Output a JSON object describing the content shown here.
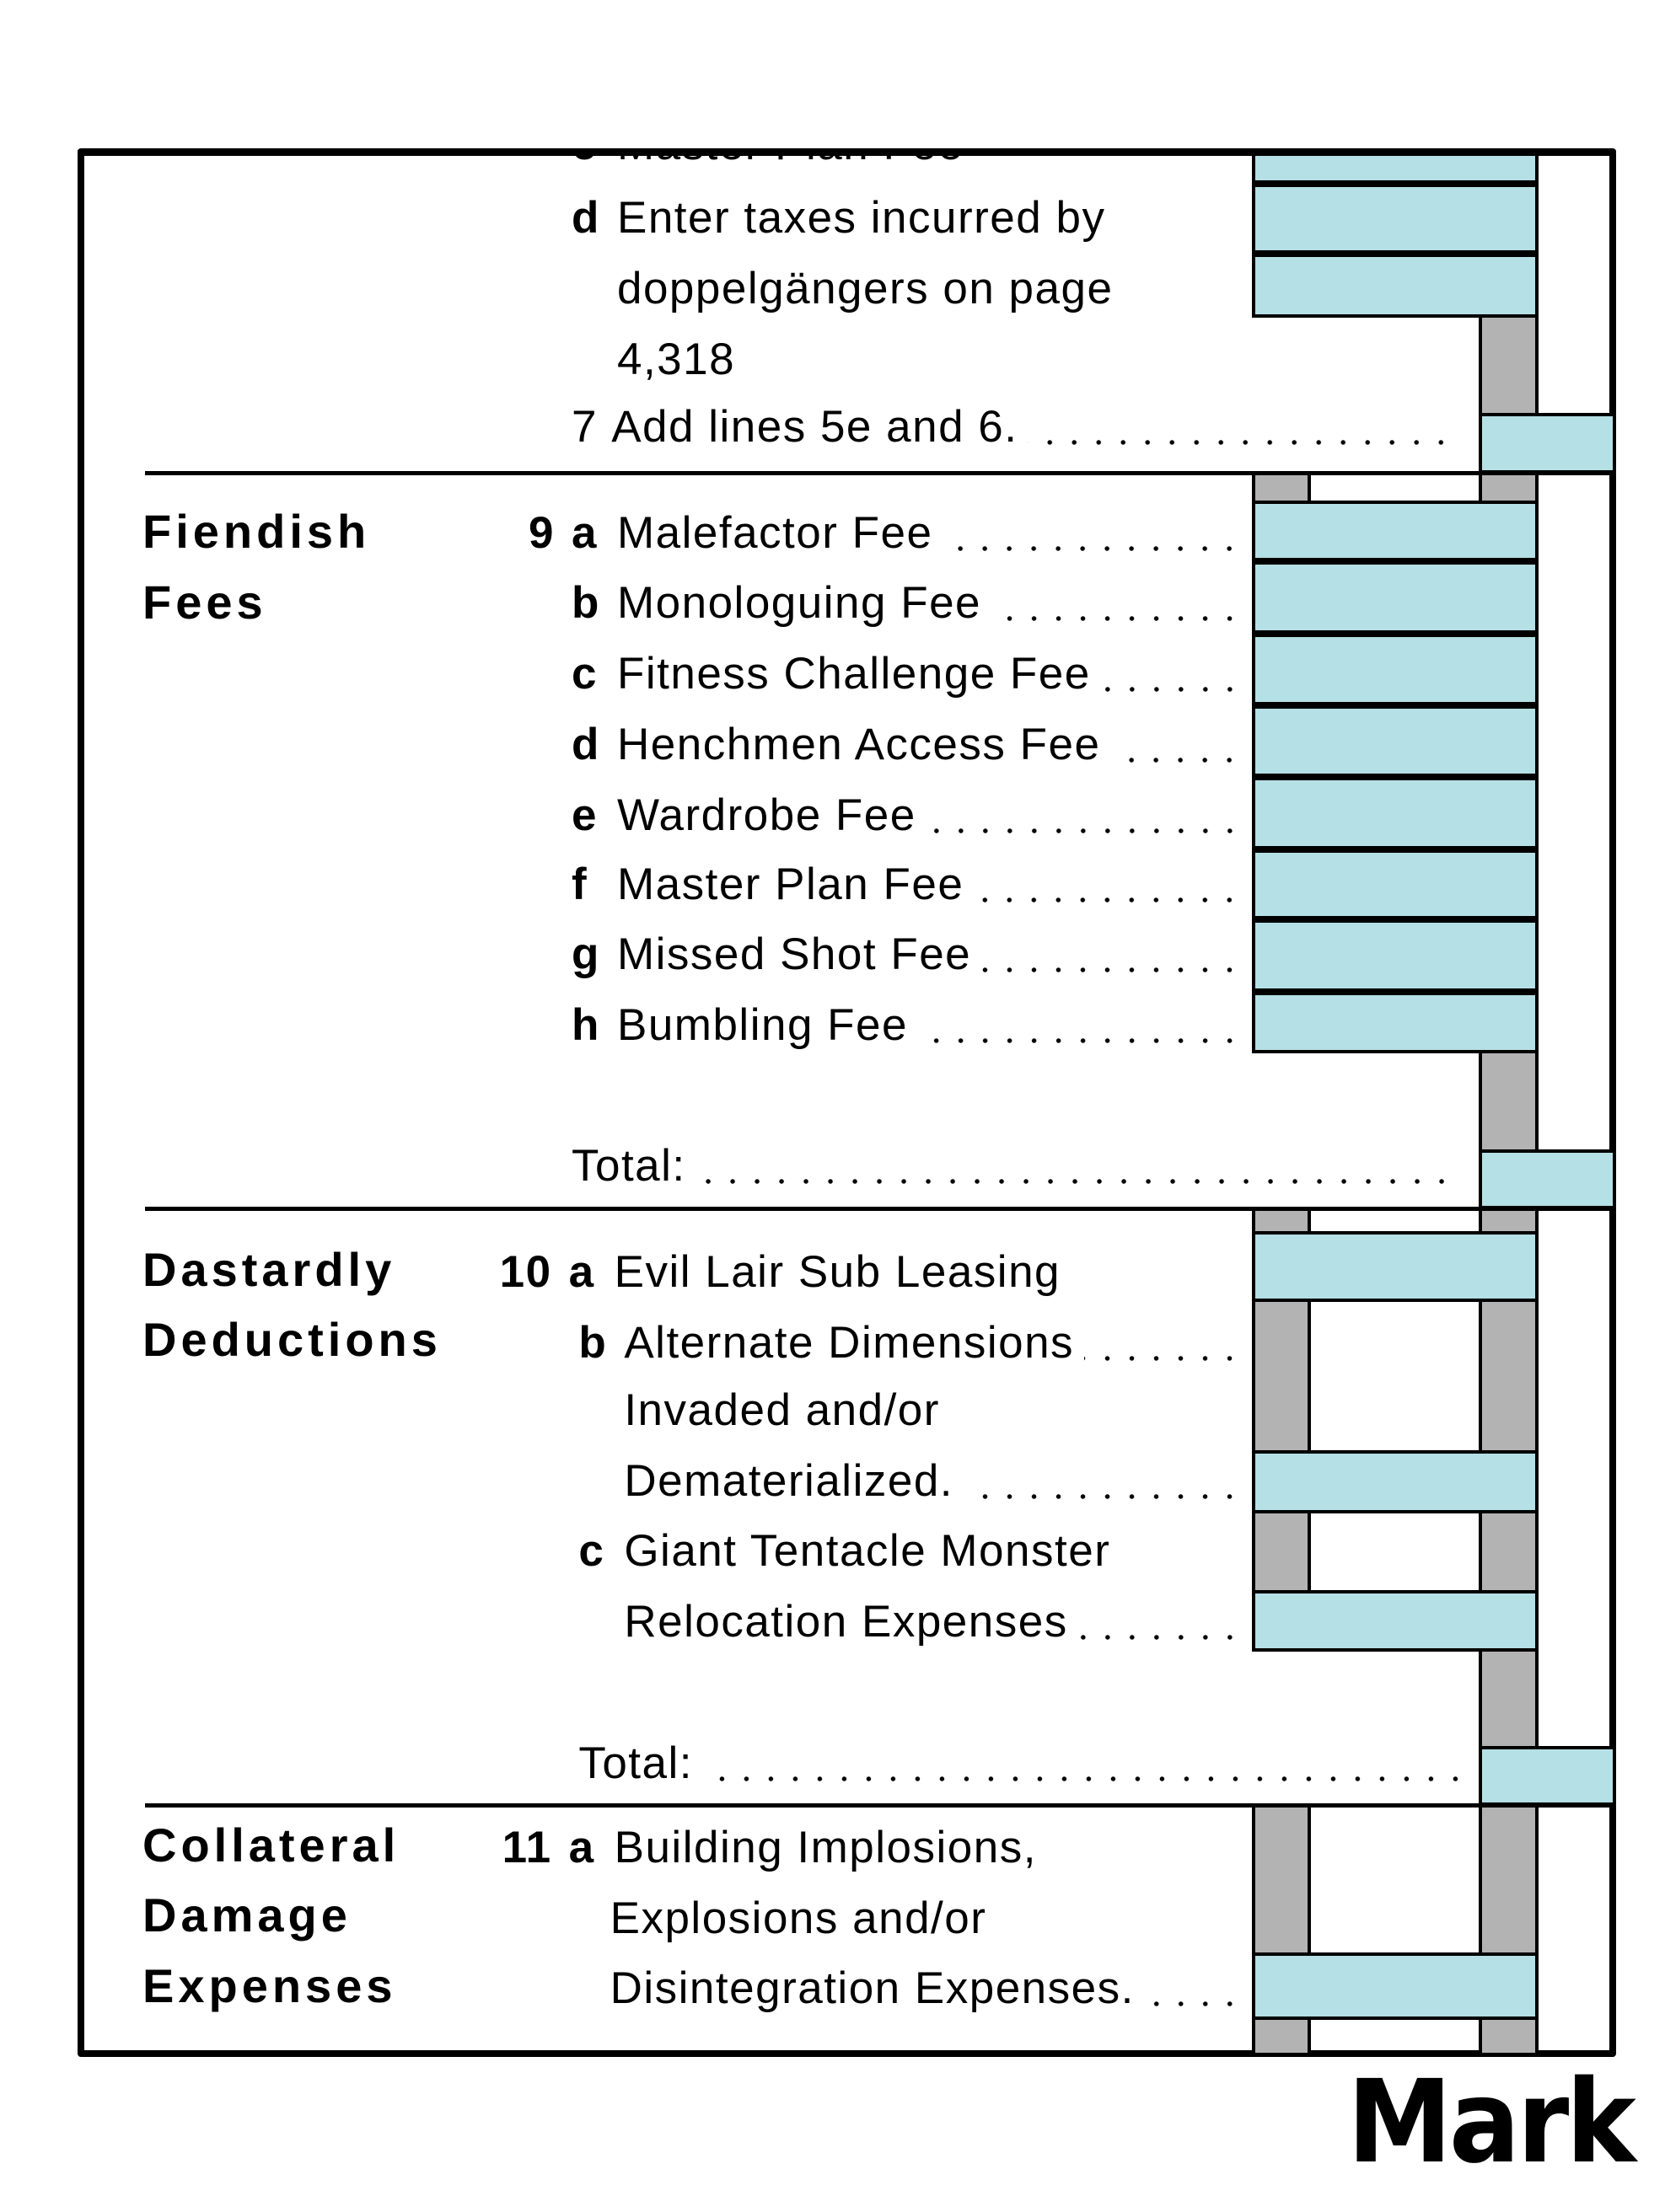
{
  "top_section": {
    "c_prev": {
      "letter": "c",
      "label": "Master Plan Fee"
    },
    "d_taxes": {
      "letter": "d",
      "lines": [
        "Enter taxes incurred by",
        "doppelgängers on page",
        "4,318"
      ]
    },
    "line7": {
      "num": "7",
      "label": "Add lines 5e and 6."
    }
  },
  "fiendish": {
    "heading": [
      "Fiendish",
      "Fees"
    ],
    "num": "9",
    "items": [
      {
        "letter": "a",
        "label": "Malefactor Fee"
      },
      {
        "letter": "b",
        "label": "Monologuing Fee"
      },
      {
        "letter": "c",
        "label": "Fitness Challenge Fee"
      },
      {
        "letter": "d",
        "label": "Henchmen Access Fee"
      },
      {
        "letter": "e",
        "label": "Wardrobe Fee"
      },
      {
        "letter": "f",
        "label": "Master Plan Fee"
      },
      {
        "letter": "g",
        "label": "Missed Shot Fee"
      },
      {
        "letter": "h",
        "label": "Bumbling Fee"
      }
    ],
    "total": "Total:"
  },
  "dastardly": {
    "heading": [
      "Dastardly",
      "Deductions"
    ],
    "num": "10",
    "a": {
      "letter": "a",
      "label": "Evil Lair Sub Leasing"
    },
    "b": {
      "letter": "b",
      "lines": [
        "Alternate Dimensions",
        "Invaded and/or",
        "Dematerialized."
      ]
    },
    "c": {
      "letter": "c",
      "lines": [
        "Giant Tentacle Monster",
        "Relocation Expenses"
      ]
    },
    "total": "Total:"
  },
  "collateral": {
    "heading": [
      "Collateral",
      "Damage",
      "Expenses"
    ],
    "num": "11",
    "a": {
      "letter": "a",
      "lines": [
        "Building Implosions,",
        "Explosions and/or",
        "Disintegration Expenses."
      ]
    }
  },
  "logo": "Mark C",
  "colors": {
    "field": "#b5e0e5",
    "spacer": "#b3b3b3",
    "ink": "#000000"
  }
}
